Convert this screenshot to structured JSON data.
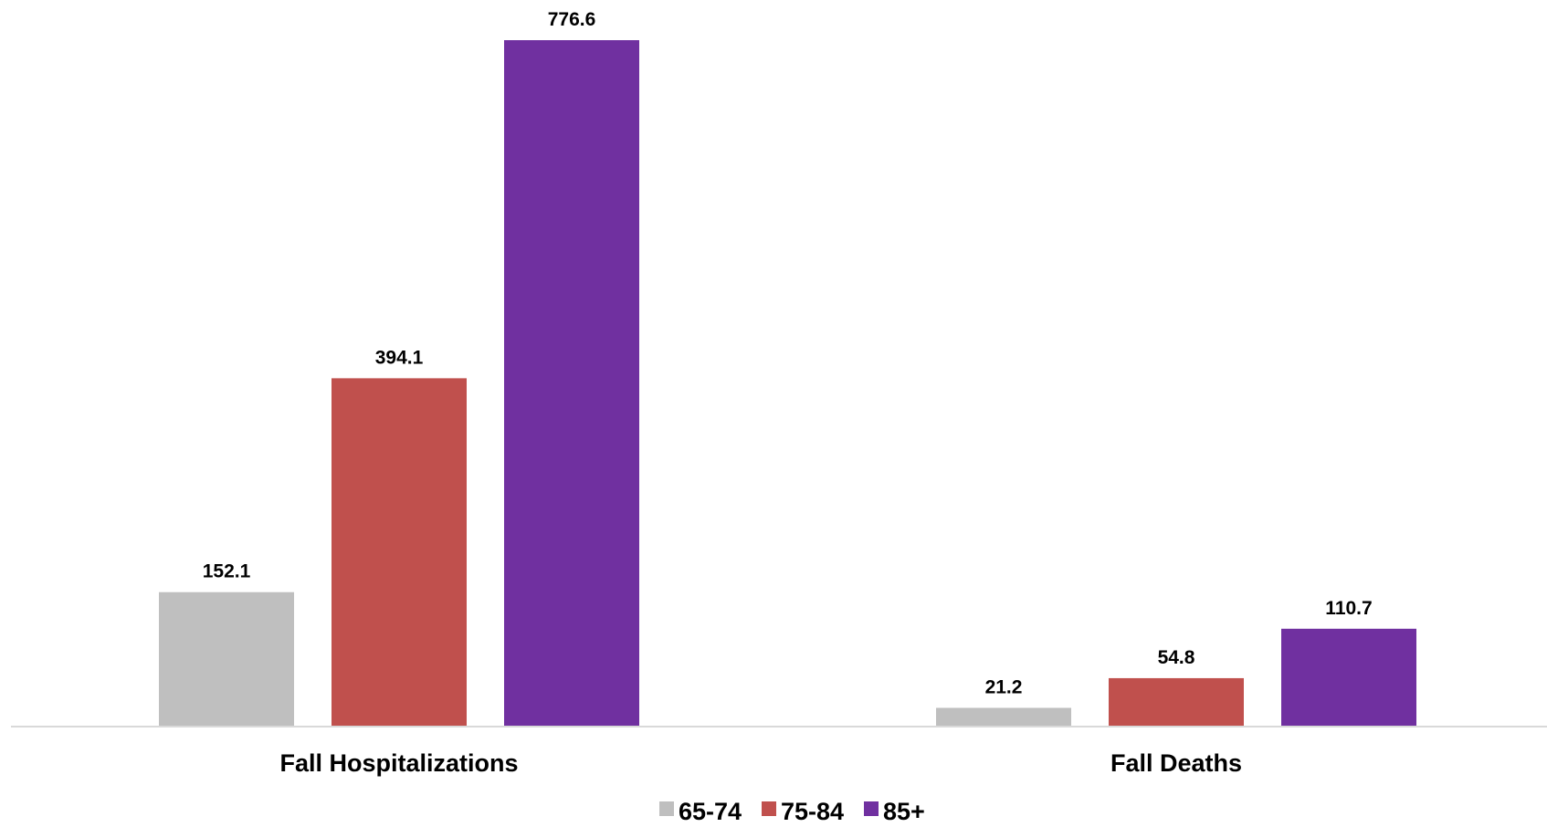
{
  "chart_data": {
    "type": "bar",
    "title": "",
    "xlabel": "",
    "ylabel": "",
    "categories": [
      "Fall Hospitalizations",
      "Fall Deaths"
    ],
    "series": [
      {
        "name": "65-74",
        "color": "#bfbfbf",
        "values": [
          152.1,
          21.2
        ]
      },
      {
        "name": "75-84",
        "color": "#c0504d",
        "values": [
          394.1,
          54.8
        ]
      },
      {
        "name": "85+",
        "color": "#7030a0",
        "values": [
          776.6,
          110.7
        ]
      }
    ],
    "value_labels": [
      [
        "152.1",
        "21.2"
      ],
      [
        "394.1",
        "54.8"
      ],
      [
        "776.6",
        "110.7"
      ]
    ],
    "ylim": [
      0,
      776.6
    ],
    "grid": false,
    "legend": "bottom-center"
  }
}
